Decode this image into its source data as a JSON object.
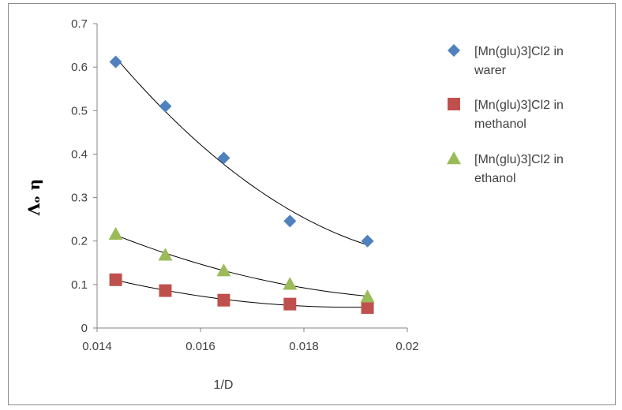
{
  "chart_data": {
    "type": "scatter",
    "xlabel": "1/D",
    "ylabel": "Λₒ η",
    "xlim": [
      0.014,
      0.02
    ],
    "ylim": [
      0,
      0.7
    ],
    "x_ticks": [
      "0.014",
      "0.016",
      "0.018",
      "0.02"
    ],
    "y_ticks": [
      "0",
      "0.1",
      "0.2",
      "0.3",
      "0.4",
      "0.5",
      "0.6",
      "0.7"
    ],
    "trendline": "polynomial",
    "legend_position": "right",
    "series": [
      {
        "name": "[Mn(glu)3]Cl2  in warer",
        "legend_lines": [
          "[Mn(glu)3]Cl2  in",
          "warer"
        ],
        "marker": "diamond",
        "color": "#4F81BD",
        "x": [
          0.01436,
          0.01532,
          0.01645,
          0.01773,
          0.01923
        ],
        "y": [
          0.612,
          0.51,
          0.391,
          0.246,
          0.2
        ]
      },
      {
        "name": "[Mn(glu)3]Cl2 in methanol",
        "legend_lines": [
          "[Mn(glu)3]Cl2 in",
          "methanol"
        ],
        "marker": "square",
        "color": "#C0504D",
        "x": [
          0.01436,
          0.01532,
          0.01645,
          0.01773,
          0.01923
        ],
        "y": [
          0.111,
          0.086,
          0.064,
          0.055,
          0.047
        ]
      },
      {
        "name": "[Mn(glu)3]Cl2 in ethanol",
        "legend_lines": [
          "[Mn(glu)3]Cl2 in",
          "ethanol"
        ],
        "marker": "triangle",
        "color": "#9BBB59",
        "x": [
          0.01436,
          0.01532,
          0.01645,
          0.01773,
          0.01923
        ],
        "y": [
          0.216,
          0.168,
          0.132,
          0.101,
          0.072
        ]
      }
    ]
  }
}
